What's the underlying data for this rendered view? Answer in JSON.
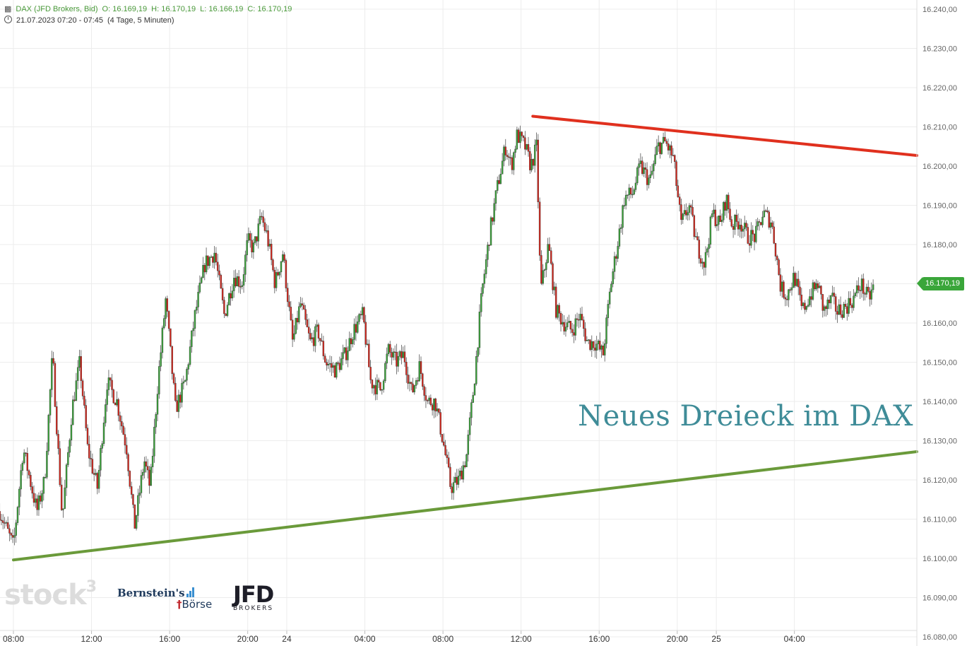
{
  "header": {
    "symbol": "DAX (JFD Brokers, Bid)",
    "open": "O: 16.169,19",
    "high": "H: 16.170,19",
    "low": "L: 16.166,19",
    "close": "C: 16.170,19",
    "timestamp": "21.07.2023 07:20 - 07:45",
    "period": "(4 Tage, 5 Minuten)"
  },
  "annotation": "Neues Dreieck im DAX",
  "current_price_label": "16.170,19",
  "logos": {
    "stock3": "stock",
    "stock3_sup": "3",
    "bernstein": "Bernstein's",
    "boerse": "Börse",
    "jfd": "JFD",
    "jfd_sub": "BROKERS"
  },
  "colors": {
    "up": "#3aa63a",
    "down": "#d9261c",
    "resistance": "#e0301e",
    "support": "#6a9a3a",
    "grid": "#ececec",
    "axis_text": "#666666",
    "annotation": "#3f8c98"
  },
  "chart_data": {
    "type": "candlestick",
    "title": "DAX (JFD Brokers, Bid)",
    "y_ticks": [
      16080,
      16090,
      16100,
      16110,
      16120,
      16130,
      16140,
      16150,
      16160,
      16170,
      16180,
      16190,
      16200,
      16210,
      16220,
      16230,
      16240
    ],
    "y_tick_labels": [
      "16.080,00",
      "16.090,00",
      "16.100,00",
      "16.110,00",
      "16.120,00",
      "16.130,00",
      "16.140,00",
      "16.150,00",
      "16.160,00",
      "16.170,00",
      "16.180,00",
      "16.190,00",
      "16.200,00",
      "16.210,00",
      "16.220,00",
      "16.230,00",
      "16.240,00"
    ],
    "ylim": [
      16080,
      16242
    ],
    "x_tick_labels": [
      "08:00",
      "12:00",
      "16:00",
      "20:00",
      "24",
      "04:00",
      "08:00",
      "12:00",
      "16:00",
      "20:00",
      "25",
      "04:00"
    ],
    "x_tick_hours": [
      0,
      4,
      8,
      12,
      14,
      18,
      22,
      26,
      30,
      34,
      36,
      40
    ],
    "xlim_hours": [
      -0.7,
      46.9
    ],
    "candle_interval_hours": 0.0833,
    "price_path": [
      [
        -0.7,
        16112
      ],
      [
        0.0,
        16103
      ],
      [
        0.5,
        16128
      ],
      [
        1.2,
        16112
      ],
      [
        1.6,
        16120
      ],
      [
        2.0,
        16152
      ],
      [
        2.5,
        16110
      ],
      [
        3.0,
        16138
      ],
      [
        3.4,
        16150
      ],
      [
        3.8,
        16128
      ],
      [
        4.3,
        16118
      ],
      [
        4.8,
        16145
      ],
      [
        5.3,
        16140
      ],
      [
        5.8,
        16128
      ],
      [
        6.2,
        16108
      ],
      [
        6.7,
        16125
      ],
      [
        7.0,
        16118
      ],
      [
        7.4,
        16145
      ],
      [
        7.8,
        16166
      ],
      [
        8.3,
        16138
      ],
      [
        8.8,
        16145
      ],
      [
        9.3,
        16162
      ],
      [
        9.8,
        16175
      ],
      [
        10.3,
        16178
      ],
      [
        10.8,
        16162
      ],
      [
        11.3,
        16172
      ],
      [
        11.7,
        16170
      ],
      [
        12.0,
        16181
      ],
      [
        12.3,
        16179
      ],
      [
        12.7,
        16187
      ],
      [
        13.0,
        16182
      ],
      [
        13.4,
        16170
      ],
      [
        13.8,
        16178
      ],
      [
        14.3,
        16155
      ],
      [
        14.7,
        16165
      ],
      [
        15.2,
        16155
      ],
      [
        15.6,
        16158
      ],
      [
        16.0,
        16150
      ],
      [
        16.5,
        16148
      ],
      [
        17.0,
        16152
      ],
      [
        17.4,
        16158
      ],
      [
        17.9,
        16162
      ],
      [
        18.3,
        16145
      ],
      [
        18.8,
        16143
      ],
      [
        19.2,
        16153
      ],
      [
        19.6,
        16150
      ],
      [
        20.0,
        16152
      ],
      [
        20.4,
        16142
      ],
      [
        20.8,
        16149
      ],
      [
        21.2,
        16140
      ],
      [
        21.6,
        16140
      ],
      [
        22.0,
        16130
      ],
      [
        22.4,
        16118
      ],
      [
        22.8,
        16120
      ],
      [
        23.2,
        16126
      ],
      [
        23.6,
        16145
      ],
      [
        24.0,
        16168
      ],
      [
        24.4,
        16183
      ],
      [
        24.8,
        16195
      ],
      [
        25.2,
        16205
      ],
      [
        25.5,
        16200
      ],
      [
        25.8,
        16208
      ],
      [
        26.2,
        16205
      ],
      [
        26.5,
        16200
      ],
      [
        26.8,
        16205
      ],
      [
        27.0,
        16168
      ],
      [
        27.4,
        16180
      ],
      [
        27.8,
        16163
      ],
      [
        28.2,
        16160
      ],
      [
        28.6,
        16158
      ],
      [
        29.0,
        16162
      ],
      [
        29.4,
        16155
      ],
      [
        29.8,
        16155
      ],
      [
        30.2,
        16152
      ],
      [
        30.6,
        16170
      ],
      [
        31.0,
        16182
      ],
      [
        31.3,
        16192
      ],
      [
        31.7,
        16193
      ],
      [
        32.1,
        16200
      ],
      [
        32.6,
        16196
      ],
      [
        33.0,
        16205
      ],
      [
        33.4,
        16206
      ],
      [
        33.8,
        16202
      ],
      [
        34.2,
        16185
      ],
      [
        34.6,
        16190
      ],
      [
        35.0,
        16180
      ],
      [
        35.4,
        16175
      ],
      [
        35.8,
        16188
      ],
      [
        36.2,
        16185
      ],
      [
        36.5,
        16192
      ],
      [
        36.8,
        16185
      ],
      [
        37.2,
        16186
      ],
      [
        37.6,
        16182
      ],
      [
        38.0,
        16182
      ],
      [
        38.4,
        16188
      ],
      [
        38.8,
        16186
      ],
      [
        39.0,
        16180
      ],
      [
        39.3,
        16169
      ],
      [
        39.6,
        16167
      ],
      [
        40.0,
        16172
      ],
      [
        40.4,
        16163
      ],
      [
        40.8,
        16167
      ],
      [
        41.2,
        16170
      ],
      [
        41.5,
        16163
      ],
      [
        41.9,
        16166
      ],
      [
        42.2,
        16163
      ],
      [
        42.6,
        16164
      ],
      [
        43.0,
        16166
      ],
      [
        43.4,
        16170
      ],
      [
        43.8,
        16166
      ],
      [
        44.1,
        16170
      ]
    ],
    "trend_lines": [
      {
        "name": "resistance",
        "x": [
          26.6,
          46.9
        ],
        "y": [
          16212.7,
          16202.7
        ]
      },
      {
        "name": "support",
        "x": [
          0.0,
          46.9
        ],
        "y": [
          16099.6,
          16127.2
        ]
      }
    ],
    "last_price": 16170.19,
    "grid": true
  }
}
